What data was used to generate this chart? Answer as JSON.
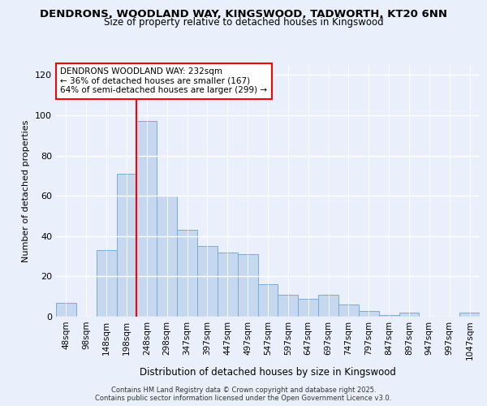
{
  "title_line1": "DENDRONS, WOODLAND WAY, KINGSWOOD, TADWORTH, KT20 6NN",
  "title_line2": "Size of property relative to detached houses in Kingswood",
  "xlabel": "Distribution of detached houses by size in Kingswood",
  "ylabel": "Number of detached properties",
  "bar_labels": [
    "48sqm",
    "98sqm",
    "148sqm",
    "198sqm",
    "248sqm",
    "298sqm",
    "347sqm",
    "397sqm",
    "447sqm",
    "497sqm",
    "547sqm",
    "597sqm",
    "647sqm",
    "697sqm",
    "747sqm",
    "797sqm",
    "847sqm",
    "897sqm",
    "947sqm",
    "997sqm",
    "1047sqm"
  ],
  "bar_values": [
    7,
    0,
    33,
    71,
    97,
    60,
    43,
    35,
    32,
    31,
    16,
    11,
    9,
    11,
    6,
    3,
    1,
    2,
    0,
    0,
    2
  ],
  "bar_color": "#c5d8f0",
  "bar_edge_color": "#7aadd4",
  "vline_color": "red",
  "vline_x_index": 4,
  "annotation_line1": "DENDRONS WOODLAND WAY: 232sqm",
  "annotation_line2": "← 36% of detached houses are smaller (167)",
  "annotation_line3": "64% of semi-detached houses are larger (299) →",
  "annotation_box_color": "white",
  "annotation_box_edge": "red",
  "ylim": [
    0,
    125
  ],
  "yticks": [
    0,
    20,
    40,
    60,
    80,
    100,
    120
  ],
  "footer_text": "Contains HM Land Registry data © Crown copyright and database right 2025.\nContains public sector information licensed under the Open Government Licence v3.0.",
  "background_color": "#eaf0fb",
  "plot_background": "#eaf0fb"
}
